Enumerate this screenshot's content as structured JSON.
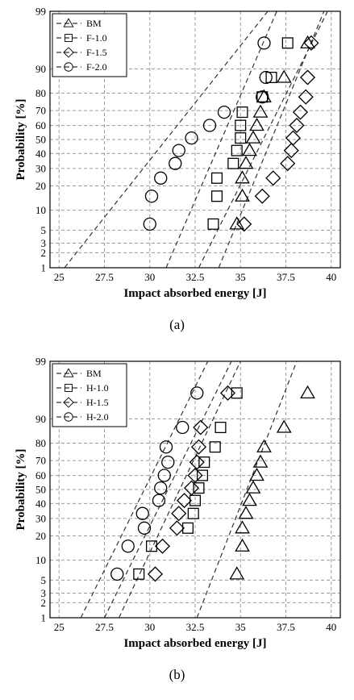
{
  "chart_data": [
    {
      "type": "scatter",
      "caption": "(a)",
      "xlabel": "Impact absorbed energy [J]",
      "ylabel": "Probability [%]",
      "xlim": [
        24.5,
        40.5
      ],
      "ylim": [
        1,
        99
      ],
      "yscale": "probability",
      "x_ticks": [
        "25",
        "27.5",
        "30",
        "32.5",
        "35",
        "37.5",
        "40"
      ],
      "y_ticks": [
        "1",
        "2",
        "3",
        "5",
        "10",
        "20",
        "30",
        "40",
        "50",
        "60",
        "70",
        "80",
        "90",
        "99"
      ],
      "grid": true,
      "legend_position": "top-left",
      "series": [
        {
          "name": "BM",
          "marker": "triangle",
          "fit": [
            [
              33.8,
              1
            ],
            [
              39.6,
              99
            ]
          ],
          "points": [
            [
              34.8,
              6.25
            ],
            [
              35.1,
              15.2
            ],
            [
              35.1,
              24.2
            ],
            [
              35.3,
              33.2
            ],
            [
              35.5,
              42.1
            ],
            [
              35.7,
              51.1
            ],
            [
              35.9,
              60.1
            ],
            [
              36.1,
              69
            ],
            [
              36.3,
              78
            ],
            [
              37.4,
              87
            ],
            [
              38.7,
              96
            ]
          ]
        },
        {
          "name": "F-1.0",
          "marker": "square",
          "fit": [
            [
              30.9,
              1
            ],
            [
              37,
              99
            ]
          ],
          "points": [
            [
              33.5,
              6.25
            ],
            [
              33.7,
              15.2
            ],
            [
              33.7,
              24.2
            ],
            [
              34.6,
              33.2
            ],
            [
              34.8,
              42.1
            ],
            [
              35,
              51.1
            ],
            [
              35,
              60.1
            ],
            [
              35.1,
              69
            ],
            [
              36.2,
              78
            ],
            [
              36.7,
              87
            ],
            [
              37.6,
              96
            ]
          ]
        },
        {
          "name": "F-1.5",
          "marker": "diamond",
          "fit": [
            [
              32.7,
              1
            ],
            [
              39.8,
              99
            ]
          ],
          "points": [
            [
              35.2,
              6.25
            ],
            [
              36.2,
              15.2
            ],
            [
              36.8,
              24.2
            ],
            [
              37.6,
              33.2
            ],
            [
              37.8,
              42.1
            ],
            [
              37.9,
              51.1
            ],
            [
              38.1,
              60.1
            ],
            [
              38.3,
              69
            ],
            [
              38.6,
              78
            ],
            [
              38.7,
              87
            ],
            [
              38.9,
              96
            ]
          ]
        },
        {
          "name": "F-2.0",
          "marker": "circle",
          "fit": [
            [
              25.3,
              1
            ],
            [
              36.5,
              99
            ]
          ],
          "points": [
            [
              30,
              6.25
            ],
            [
              30.1,
              15.2
            ],
            [
              30.6,
              24.2
            ],
            [
              31.4,
              33.2
            ],
            [
              31.6,
              42.1
            ],
            [
              32.3,
              51.1
            ],
            [
              33.3,
              60.1
            ],
            [
              34.1,
              69
            ],
            [
              36.2,
              78
            ],
            [
              36.4,
              87
            ],
            [
              36.3,
              96
            ]
          ]
        }
      ]
    },
    {
      "type": "scatter",
      "caption": "(b)",
      "xlabel": "Impact absorbed energy [J]",
      "ylabel": "Probability [%]",
      "xlim": [
        24.5,
        40.5
      ],
      "ylim": [
        1,
        99
      ],
      "yscale": "probability",
      "x_ticks": [
        "25",
        "27.5",
        "30",
        "32.5",
        "35",
        "37.5",
        "40"
      ],
      "y_ticks": [
        "1",
        "2",
        "3",
        "5",
        "10",
        "20",
        "30",
        "40",
        "50",
        "60",
        "70",
        "80",
        "90",
        "99"
      ],
      "grid": true,
      "legend_position": "top-left",
      "series": [
        {
          "name": "BM",
          "marker": "triangle",
          "fit": [
            [
              32.6,
              1
            ],
            [
              38.1,
              99
            ]
          ],
          "points": [
            [
              34.8,
              6.25
            ],
            [
              35.1,
              15.2
            ],
            [
              35.1,
              24.2
            ],
            [
              35.3,
              33.2
            ],
            [
              35.5,
              42.1
            ],
            [
              35.7,
              51.1
            ],
            [
              35.9,
              60.1
            ],
            [
              36.1,
              69
            ],
            [
              36.3,
              78
            ],
            [
              37.4,
              87
            ],
            [
              38.7,
              96
            ]
          ]
        },
        {
          "name": "H-1.0",
          "marker": "square",
          "fit": [
            [
              28.3,
              1
            ],
            [
              35,
              99
            ]
          ],
          "points": [
            [
              29.4,
              6.25
            ],
            [
              30.1,
              15.2
            ],
            [
              32.1,
              24.2
            ],
            [
              32.4,
              33.2
            ],
            [
              32.5,
              42.1
            ],
            [
              32.7,
              51.1
            ],
            [
              32.9,
              60.1
            ],
            [
              33.0,
              69
            ],
            [
              33.6,
              78
            ],
            [
              33.9,
              87
            ],
            [
              34.8,
              96
            ]
          ]
        },
        {
          "name": "H-1.5",
          "marker": "diamond",
          "fit": [
            [
              27.5,
              1
            ],
            [
              34.5,
              99
            ]
          ],
          "points": [
            [
              30.3,
              6.25
            ],
            [
              30.7,
              15.2
            ],
            [
              31.5,
              24.2
            ],
            [
              31.6,
              33.2
            ],
            [
              31.9,
              42.1
            ],
            [
              32.3,
              51.1
            ],
            [
              32.5,
              60.1
            ],
            [
              32.6,
              69
            ],
            [
              32.7,
              78
            ],
            [
              32.8,
              87
            ],
            [
              34.3,
              96
            ]
          ]
        },
        {
          "name": "H-2.0",
          "marker": "circle",
          "fit": [
            [
              26.2,
              1
            ],
            [
              33.2,
              99
            ]
          ],
          "points": [
            [
              28.2,
              6.25
            ],
            [
              28.8,
              15.2
            ],
            [
              29.7,
              24.2
            ],
            [
              29.6,
              33.2
            ],
            [
              30.5,
              42.1
            ],
            [
              30.6,
              51.1
            ],
            [
              30.8,
              60.1
            ],
            [
              31.0,
              69
            ],
            [
              30.9,
              78
            ],
            [
              31.8,
              87
            ],
            [
              32.6,
              96
            ]
          ]
        }
      ]
    }
  ]
}
